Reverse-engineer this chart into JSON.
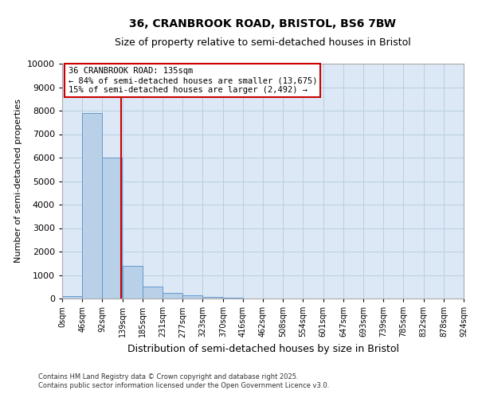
{
  "title1": "36, CRANBROOK ROAD, BRISTOL, BS6 7BW",
  "title2": "Size of property relative to semi-detached houses in Bristol",
  "xlabel": "Distribution of semi-detached houses by size in Bristol",
  "ylabel": "Number of semi-detached properties",
  "bar_color": "#b8d0e8",
  "bar_edge_color": "#6699cc",
  "plot_bg_color": "#dce8f5",
  "background_color": "#ffffff",
  "grid_color": "#b8cfe0",
  "property_size": 135,
  "property_line_color": "#cc0000",
  "annotation_title": "36 CRANBROOK ROAD: 135sqm",
  "annotation_line1": "← 84% of semi-detached houses are smaller (13,675)",
  "annotation_line2": "15% of semi-detached houses are larger (2,492) →",
  "annotation_box_color": "#cc0000",
  "bin_starts": [
    0,
    46,
    92,
    139,
    185,
    231,
    277,
    323,
    370,
    416,
    462,
    508,
    554,
    601,
    647,
    693,
    739,
    785,
    832,
    878
  ],
  "bin_width": 46,
  "bin_labels": [
    "0sqm",
    "46sqm",
    "92sqm",
    "139sqm",
    "185sqm",
    "231sqm",
    "277sqm",
    "323sqm",
    "370sqm",
    "416sqm",
    "462sqm",
    "508sqm",
    "554sqm",
    "601sqm",
    "647sqm",
    "693sqm",
    "739sqm",
    "785sqm",
    "832sqm",
    "878sqm",
    "924sqm"
  ],
  "bar_heights": [
    110,
    7900,
    6000,
    1400,
    500,
    250,
    150,
    80,
    20,
    5,
    2,
    1,
    0,
    0,
    0,
    0,
    0,
    0,
    0,
    0
  ],
  "ylim": [
    0,
    10000
  ],
  "yticks": [
    0,
    1000,
    2000,
    3000,
    4000,
    5000,
    6000,
    7000,
    8000,
    9000,
    10000
  ],
  "footer1": "Contains HM Land Registry data © Crown copyright and database right 2025.",
  "footer2": "Contains public sector information licensed under the Open Government Licence v3.0."
}
